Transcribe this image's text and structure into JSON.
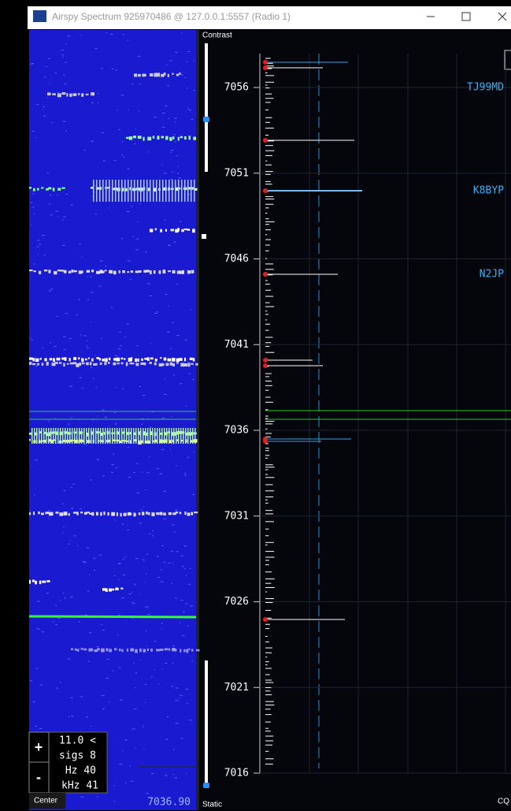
{
  "window": {
    "title": "Airspy Spectrum 925970486 @ 127.0.0.1:5557 (Radio 1)"
  },
  "waterfall": {
    "readout": [
      "11.0 <",
      "sigs 8",
      "Hz 40",
      "kHz 41"
    ],
    "zoom_in": "+",
    "zoom_out": "-",
    "center_button": "Center",
    "frequency": "7036.90"
  },
  "spectrum": {
    "contrast_label": "Contrast",
    "static_label": "Static",
    "cq_label": "CQ",
    "axis_labels": [
      "7056",
      "7051",
      "7046",
      "7041",
      "7036",
      "7031",
      "7026",
      "7021",
      "7016"
    ],
    "spots": [
      "TJ99MD",
      "K8BYP",
      "N2JP"
    ]
  }
}
